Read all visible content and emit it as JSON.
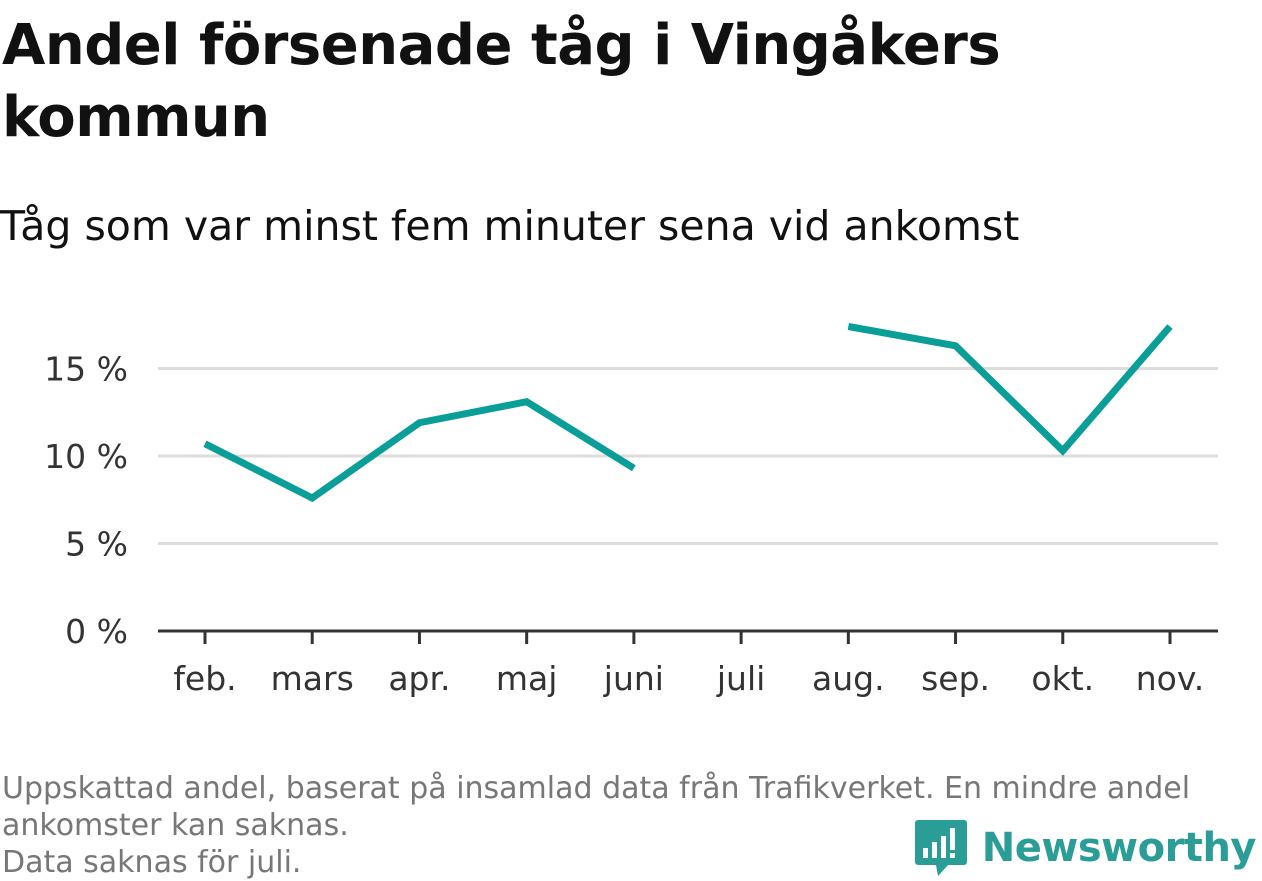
{
  "title": "Andel försenade tåg i Vingåkers kommun",
  "subtitle": "Tåg som var minst fem minuter sena vid ankomst",
  "notes": [
    "Uppskattad andel, baserat på insamlad data från Trafikverket. En mindre andel ankomster kan saknas.",
    "Data saknas för juli."
  ],
  "brand": {
    "name": "Newsworthy",
    "icon": "newsworthy-logo-icon"
  },
  "colors": {
    "line": "#0a9e98",
    "grid": "#dddddd",
    "axis": "#333333",
    "brand": "#2a9d96"
  },
  "chart_data": {
    "type": "line",
    "title": "Andel försenade tåg i Vingåkers kommun",
    "subtitle": "Tåg som var minst fem minuter sena vid ankomst",
    "categories": [
      "feb.",
      "mars",
      "apr.",
      "maj",
      "juni",
      "juli",
      "aug.",
      "sep.",
      "okt.",
      "nov."
    ],
    "series": [
      {
        "values": [
          10.7,
          7.6,
          11.9,
          13.1,
          9.3,
          null,
          17.4,
          16.3,
          10.3,
          17.4
        ]
      }
    ],
    "y_ticks": [
      0,
      5,
      10,
      15
    ],
    "y_tick_labels": [
      "0 %",
      "5 %",
      "10 %",
      "15 %"
    ],
    "ylim": [
      0,
      20
    ],
    "unit": "%",
    "grid": true,
    "legend": "none",
    "missing": [
      "juli"
    ]
  }
}
